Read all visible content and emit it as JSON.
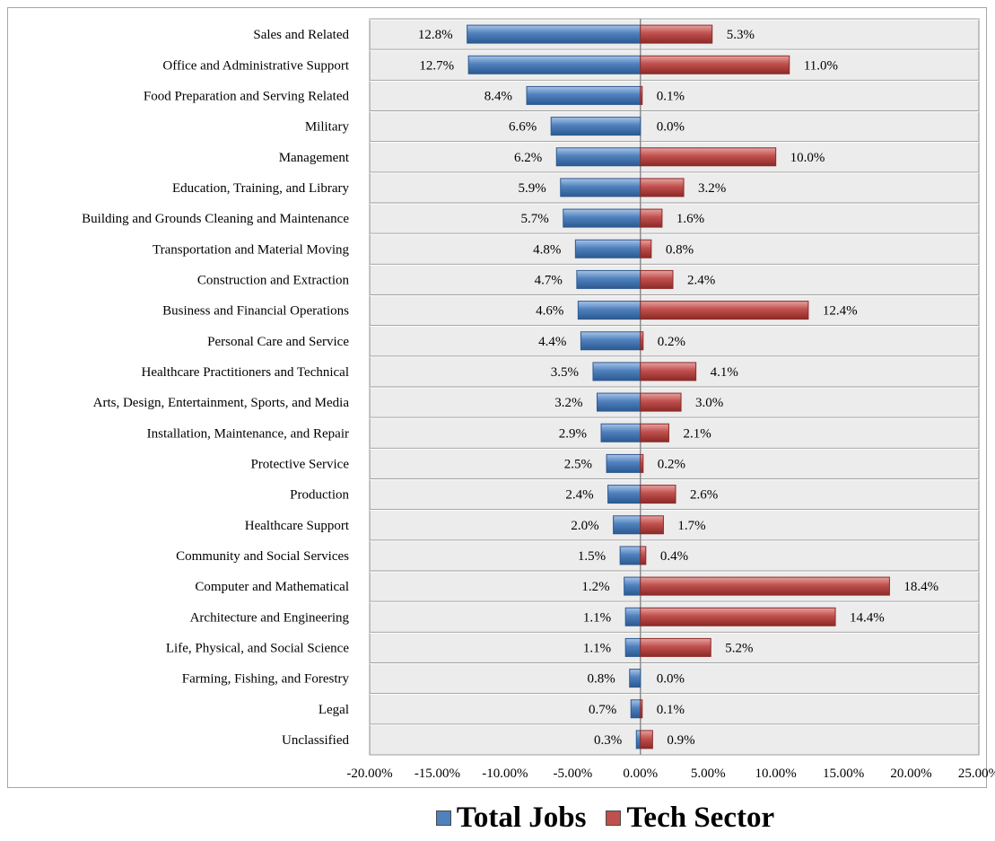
{
  "chart_data": {
    "type": "bar",
    "orientation": "horizontal",
    "categories": [
      "Sales and Related",
      "Office and Administrative Support",
      "Food Preparation and Serving Related",
      "Military",
      "Management",
      "Education, Training, and Library",
      "Building and Grounds Cleaning and Maintenance",
      "Transportation and Material Moving",
      "Construction and Extraction",
      "Business and Financial Operations",
      "Personal Care and Service",
      "Healthcare Practitioners and Technical",
      "Arts, Design,  Entertainment, Sports, and Media",
      "Installation, Maintenance, and Repair",
      "Protective Service",
      "Production",
      "Healthcare Support",
      "Community and Social Services",
      "Computer and Mathematical",
      "Architecture and Engineering",
      "Life, Physical, and Social Science",
      "Farming, Fishing,  and Forestry",
      "Legal",
      "Unclassified"
    ],
    "series": [
      {
        "name": "Total Jobs",
        "color": "#4f81bd",
        "values": [
          -12.8,
          -12.7,
          -8.4,
          -6.6,
          -6.2,
          -5.9,
          -5.7,
          -4.8,
          -4.7,
          -4.6,
          -4.4,
          -3.5,
          -3.2,
          -2.9,
          -2.5,
          -2.4,
          -2.0,
          -1.5,
          -1.2,
          -1.1,
          -1.1,
          -0.8,
          -0.7,
          -0.3
        ],
        "labels": [
          "12.8%",
          "12.7%",
          "8.4%",
          "6.6%",
          "6.2%",
          "5.9%",
          "5.7%",
          "4.8%",
          "4.7%",
          "4.6%",
          "4.4%",
          "3.5%",
          "3.2%",
          "2.9%",
          "2.5%",
          "2.4%",
          "2.0%",
          "1.5%",
          "1.2%",
          "1.1%",
          "1.1%",
          "0.8%",
          "0.7%",
          "0.3%"
        ]
      },
      {
        "name": "Tech Sector",
        "color": "#c0504d",
        "values": [
          5.3,
          11.0,
          0.1,
          0.0,
          10.0,
          3.2,
          1.6,
          0.8,
          2.4,
          12.4,
          0.2,
          4.1,
          3.0,
          2.1,
          0.2,
          2.6,
          1.7,
          0.4,
          18.4,
          14.4,
          5.2,
          0.0,
          0.1,
          0.9
        ],
        "labels": [
          "5.3%",
          "11.0%",
          "0.1%",
          "0.0%",
          "10.0%",
          "3.2%",
          "1.6%",
          "0.8%",
          "2.4%",
          "12.4%",
          "0.2%",
          "4.1%",
          "3.0%",
          "2.1%",
          "0.2%",
          "2.6%",
          "1.7%",
          "0.4%",
          "18.4%",
          "14.4%",
          "5.2%",
          "0.0%",
          "0.1%",
          "0.9%"
        ]
      }
    ],
    "xlim": [
      -20,
      25
    ],
    "x_ticks": [
      "-20.00%",
      "-15.00%",
      "-10.00%",
      "-5.00%",
      "0.00%",
      "5.00%",
      "10.00%",
      "15.00%",
      "20.00%",
      "25.00%"
    ],
    "grid": true,
    "legend_position": "bottom"
  }
}
